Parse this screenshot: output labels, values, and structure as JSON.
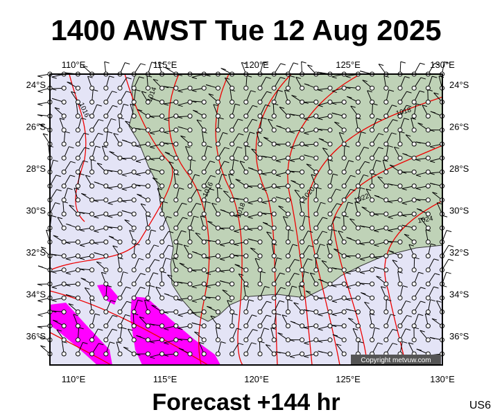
{
  "title": "1400 AWST Tue 12 Aug 2025",
  "footer": "Forecast +144 hr",
  "model_code": "US6",
  "copyright": "Copyright metvuw.com",
  "longitude_labels": [
    "110°E",
    "115°E",
    "120°E",
    "125°E",
    "130°E"
  ],
  "latitude_labels": [
    "24°S",
    "26°S",
    "28°S",
    "30°S",
    "32°S",
    "34°S",
    "36°S"
  ],
  "contour_labels": [
    "1014",
    "1016",
    "1016",
    "1018",
    "1020",
    "1022",
    "1024",
    "1018"
  ]
}
